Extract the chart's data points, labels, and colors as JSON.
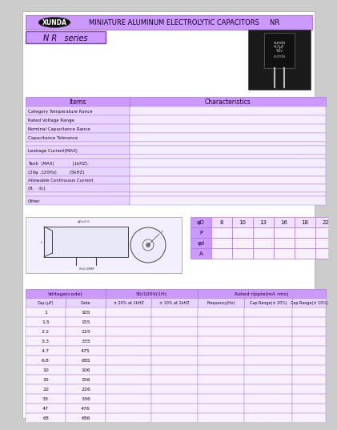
{
  "bg_color": "#ffffff",
  "page_bg": "#cccccc",
  "purple": "#cc99ff",
  "purple_light": "#ddaaff",
  "purple_row": "#e8d5ff",
  "white": "#ffffff",
  "black": "#000000",
  "dark_purple": "#220033",
  "title_text": "MINIATURE ALUMINUM ELECTROLYTIC CAPACITORS     NR",
  "brand": "XUNDA",
  "series_text": "N R   series",
  "items_col_header": "Items",
  "char_col_header": "Characteristics",
  "dim_table_headers": [
    "φD",
    "8",
    "10",
    "13",
    "16",
    "18",
    "22"
  ],
  "dim_rows": [
    "P",
    "φd",
    "A"
  ],
  "voltage_table_title": "Voltage(code)",
  "spec_table_title": "50/100V(1H)",
  "ripple_table_title": "Rated ripple(mA rms)",
  "cap_col": "Cap.(μF)",
  "code_col": "Code",
  "col_20": "± 20% at 1kHZ",
  "col_10": "± 10% at 1kHZ",
  "freq_col": "Frequency(Hz)",
  "cap_range_20": "Cap Range(± 20%)",
  "cap_range_10": "Cap Range(± 10%)",
  "voltage_data": [
    [
      "1",
      "105"
    ],
    [
      "1.5",
      "155"
    ],
    [
      "2.2",
      "225"
    ],
    [
      "3.3",
      "335"
    ],
    [
      "4.7",
      "475"
    ],
    [
      "6.8",
      "685"
    ],
    [
      "10",
      "106"
    ],
    [
      "15",
      "156"
    ],
    [
      "22",
      "226"
    ],
    [
      "33",
      "336"
    ],
    [
      "47",
      "476"
    ],
    [
      "68",
      "686"
    ]
  ],
  "row_items": [
    [
      "Category Temperature Rance",
      true
    ],
    [
      "Rated Voltage Range",
      true
    ],
    [
      "Nominal Capacitance Rance",
      true
    ],
    [
      "Capacitance Tolerance",
      true
    ],
    [
      "",
      false
    ],
    [
      "Leakage Current(MAX)",
      true
    ],
    [
      "",
      false
    ],
    [
      "Tanδ  (MAX)             (1kHZ)",
      true
    ],
    [
      "(20φ ,120Hz)         (5kHZ)",
      true
    ],
    [
      "Allowable Continuous Current",
      true
    ],
    [
      "(θ,   -tc)",
      true
    ],
    [
      "",
      false
    ],
    [
      "Other",
      true
    ]
  ]
}
